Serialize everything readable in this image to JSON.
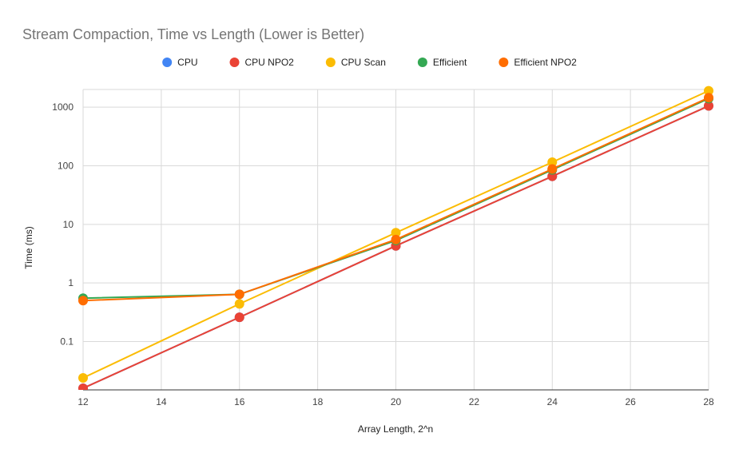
{
  "chart_data": {
    "type": "line",
    "title": "Stream Compaction, Time vs Length (Lower is Better)",
    "xlabel": "Array Length, 2^n",
    "ylabel": "Time (ms)",
    "yscale": "log",
    "xlim": [
      12,
      28
    ],
    "ylim": [
      0.015,
      2000
    ],
    "x_ticks": [
      12,
      14,
      16,
      18,
      20,
      22,
      24,
      26,
      28
    ],
    "y_ticks": [
      0.1,
      1,
      10,
      100,
      1000
    ],
    "y_tick_labels": [
      "0.1",
      "1",
      "10",
      "100",
      "1000"
    ],
    "grid": true,
    "legend_position": "top",
    "x": [
      12,
      16,
      20,
      24,
      28
    ],
    "series": [
      {
        "name": "CPU",
        "color": "#4285F4",
        "values": [
          0.016,
          0.26,
          4.3,
          66,
          1050
        ]
      },
      {
        "name": "CPU NPO2",
        "color": "#EA4335",
        "values": [
          0.016,
          0.26,
          4.3,
          66,
          1050
        ]
      },
      {
        "name": "CPU Scan",
        "color": "#FBBC04",
        "values": [
          0.024,
          0.44,
          7.2,
          115,
          1900
        ]
      },
      {
        "name": "Efficient",
        "color": "#34A853",
        "values": [
          0.55,
          0.64,
          5.3,
          85,
          1400
        ]
      },
      {
        "name": "Efficient NPO2",
        "color": "#FF6D01",
        "values": [
          0.5,
          0.64,
          5.5,
          88,
          1450
        ]
      }
    ]
  }
}
